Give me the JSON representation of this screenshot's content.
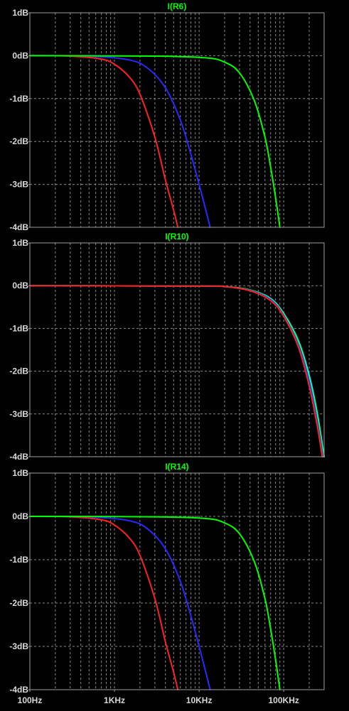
{
  "colors": {
    "background": "#000000",
    "frame": "#a0a0a0",
    "grid": "#8a8a8a",
    "tick_text": "#d8d8d8",
    "title_text": "#00ff00"
  },
  "x_axis": {
    "scale": "log",
    "range_hz": [
      100,
      300000
    ],
    "tick_values": [
      100,
      1000,
      10000,
      100000
    ],
    "tick_labels": [
      "100Hz",
      "1KHz",
      "10KHz",
      "100KHz"
    ]
  },
  "chart_data": [
    {
      "type": "line",
      "title": "I(R6)",
      "ylim": [
        -4,
        1
      ],
      "y_tick_values": [
        1,
        0,
        -1,
        -2,
        -3,
        -4
      ],
      "y_tick_labels": [
        "1dB",
        "0dB",
        "-1dB",
        "-2dB",
        "-3dB",
        "-4dB"
      ],
      "grid": true,
      "series": [
        {
          "color": "#ff2020",
          "x": [
            100,
            300,
            700,
            1000,
            1500,
            2000,
            3000,
            4000,
            5000,
            5600
          ],
          "y": [
            0,
            -0.01,
            -0.08,
            -0.2,
            -0.5,
            -0.9,
            -1.9,
            -2.9,
            -3.6,
            -4.0
          ]
        },
        {
          "color": "#2828ff",
          "x": [
            100,
            500,
            1500,
            2500,
            4000,
            6000,
            8000,
            10000,
            12000,
            13500
          ],
          "y": [
            0,
            -0.01,
            -0.1,
            -0.3,
            -0.75,
            -1.5,
            -2.3,
            -3.0,
            -3.6,
            -4.0
          ]
        },
        {
          "color": "#00ff00",
          "x": [
            100,
            3000,
            12000,
            20000,
            30000,
            45000,
            60000,
            70000,
            80000,
            90000
          ],
          "y": [
            0,
            -0.01,
            -0.05,
            -0.15,
            -0.4,
            -1.05,
            -1.9,
            -2.6,
            -3.3,
            -4.0
          ]
        }
      ]
    },
    {
      "type": "line",
      "title": "I(R10)",
      "ylim": [
        -4,
        1
      ],
      "y_tick_values": [
        1,
        0,
        -1,
        -2,
        -3,
        -4
      ],
      "y_tick_labels": [
        "1dB",
        "0dB",
        "-1dB",
        "-2dB",
        "-3dB",
        "-4dB"
      ],
      "grid": true,
      "series": [
        {
          "color": "#00ffff",
          "x": [
            100,
            10000,
            20000,
            40000,
            70000,
            100000,
            150000,
            200000,
            250000,
            300000
          ],
          "y": [
            0,
            -0.01,
            -0.02,
            -0.1,
            -0.3,
            -0.65,
            -1.3,
            -2.1,
            -3.0,
            -4.0
          ]
        },
        {
          "color": "#00ff00",
          "x": [
            100,
            10000,
            20000,
            40000,
            70000,
            100000,
            150000,
            200000,
            250000,
            295000
          ],
          "y": [
            0,
            -0.01,
            -0.02,
            -0.1,
            -0.32,
            -0.68,
            -1.35,
            -2.2,
            -3.1,
            -4.0
          ]
        },
        {
          "color": "#2828ff",
          "x": [
            100,
            10000,
            20000,
            40000,
            70000,
            100000,
            150000,
            200000,
            250000,
            290000
          ],
          "y": [
            0,
            -0.01,
            -0.02,
            -0.11,
            -0.33,
            -0.7,
            -1.4,
            -2.25,
            -3.2,
            -4.0
          ]
        },
        {
          "color": "#ff2020",
          "x": [
            100,
            10000,
            20000,
            40000,
            70000,
            100000,
            150000,
            200000,
            250000,
            285000
          ],
          "y": [
            0,
            -0.01,
            -0.02,
            -0.12,
            -0.35,
            -0.72,
            -1.45,
            -2.35,
            -3.3,
            -4.0
          ]
        }
      ]
    },
    {
      "type": "line",
      "title": "I(R14)",
      "ylim": [
        -4,
        1
      ],
      "y_tick_values": [
        1,
        0,
        -1,
        -2,
        -3,
        -4
      ],
      "y_tick_labels": [
        "1dB",
        "0dB",
        "-1dB",
        "-2dB",
        "-3dB",
        "-4dB"
      ],
      "grid": true,
      "series": [
        {
          "color": "#ff2020",
          "x": [
            100,
            300,
            700,
            1000,
            1500,
            2000,
            3000,
            4000,
            5000,
            5600
          ],
          "y": [
            0,
            -0.01,
            -0.08,
            -0.2,
            -0.5,
            -0.9,
            -1.9,
            -2.9,
            -3.6,
            -4.0
          ]
        },
        {
          "color": "#2828ff",
          "x": [
            100,
            500,
            1500,
            2500,
            4000,
            6000,
            8000,
            10000,
            12000,
            13500
          ],
          "y": [
            0,
            -0.01,
            -0.1,
            -0.3,
            -0.75,
            -1.5,
            -2.3,
            -3.0,
            -3.6,
            -4.0
          ]
        },
        {
          "color": "#00ff00",
          "x": [
            100,
            3000,
            12000,
            20000,
            30000,
            45000,
            60000,
            70000,
            80000,
            90000
          ],
          "y": [
            0,
            -0.01,
            -0.05,
            -0.15,
            -0.4,
            -1.05,
            -1.9,
            -2.6,
            -3.3,
            -4.0
          ]
        }
      ]
    }
  ]
}
